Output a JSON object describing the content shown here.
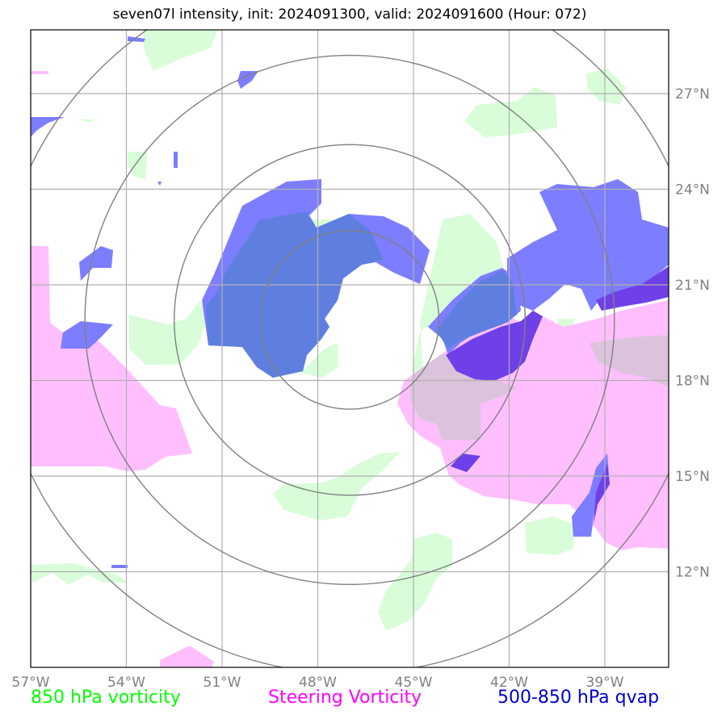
{
  "title": "seven07l intensity, init: 2024091300, valid: 2024091600 (Hour: 072)",
  "map": {
    "lon_range": [
      -57,
      -37
    ],
    "lat_range": [
      9,
      29
    ],
    "lon_ticks": [
      {
        "value": -57,
        "label": "57°W"
      },
      {
        "value": -54,
        "label": "54°W"
      },
      {
        "value": -51,
        "label": "51°W"
      },
      {
        "value": -48,
        "label": "48°W"
      },
      {
        "value": -45,
        "label": "45°W"
      },
      {
        "value": -42,
        "label": "42°W"
      },
      {
        "value": -39,
        "label": "39°W"
      }
    ],
    "lat_ticks": [
      {
        "value": 27,
        "label": "27°N"
      },
      {
        "value": 24,
        "label": "24°N"
      },
      {
        "value": 21,
        "label": "21°N"
      },
      {
        "value": 18,
        "label": "18°N"
      },
      {
        "value": 15,
        "label": "15°N"
      },
      {
        "value": 12,
        "label": "12°N"
      }
    ],
    "storm_center": {
      "lon": -47.0,
      "lat": 19.9
    },
    "range_ring_radii_deg": [
      2.8,
      5.5,
      8.3,
      11.1
    ],
    "grid": true,
    "colors": {
      "vorticity_850": "#d9fdd9",
      "steering_vorticity": "#ffbfff",
      "qvap": "#6b6bff",
      "grid": "#b0b0b0",
      "rings": "#808080"
    }
  },
  "legend": [
    {
      "label": "850 hPa vorticity",
      "color": "#00ff00"
    },
    {
      "label": "Steering Vorticity",
      "color": "#ff00ff"
    },
    {
      "label": "500-850 hPa qvap",
      "color": "#0000cc"
    }
  ]
}
